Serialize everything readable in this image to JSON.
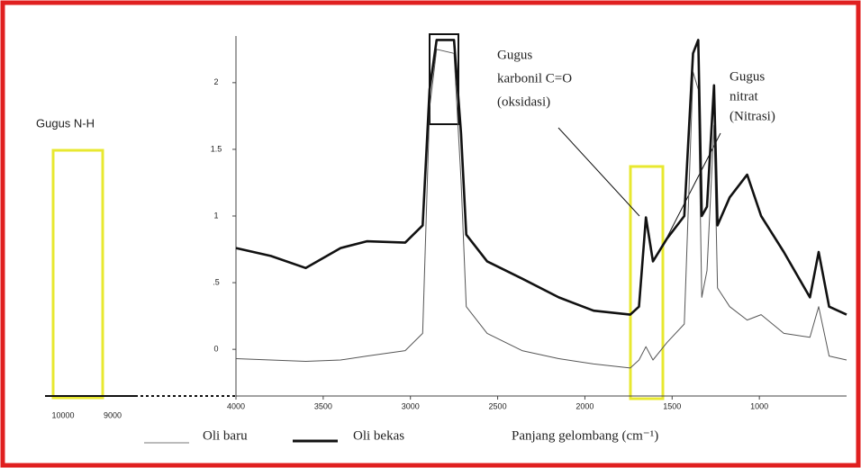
{
  "chart_data": {
    "type": "line",
    "x_axis_label": "Panjang gelombang (cm⁻¹)",
    "x": [
      4000,
      3800,
      3600,
      3400,
      3250,
      3030,
      2930,
      2890,
      2850,
      2750,
      2710,
      2680,
      2560,
      2360,
      2150,
      1950,
      1740,
      1690,
      1650,
      1610,
      1530,
      1430,
      1380,
      1350,
      1330,
      1300,
      1260,
      1240,
      1170,
      1070,
      990,
      860,
      710,
      660,
      600,
      500
    ],
    "series": [
      {
        "name": "Oli baru",
        "color": "#555555",
        "values": [
          -0.07,
          -0.08,
          -0.09,
          -0.08,
          -0.05,
          -0.01,
          0.12,
          1.81,
          2.25,
          2.22,
          1.27,
          0.32,
          0.12,
          -0.01,
          -0.07,
          -0.11,
          -0.14,
          -0.08,
          0.02,
          -0.08,
          0.05,
          0.19,
          2.08,
          1.95,
          0.39,
          0.59,
          1.68,
          0.46,
          0.32,
          0.22,
          0.26,
          0.12,
          0.09,
          0.32,
          -0.05,
          -0.08
        ]
      },
      {
        "name": "Oli bekas",
        "color": "#111111",
        "values": [
          0.76,
          0.7,
          0.61,
          0.76,
          0.81,
          0.8,
          0.93,
          1.95,
          2.32,
          2.32,
          1.62,
          0.86,
          0.66,
          0.53,
          0.39,
          0.29,
          0.26,
          0.32,
          0.99,
          0.66,
          0.83,
          1.0,
          2.22,
          2.32,
          1.0,
          1.07,
          1.98,
          0.93,
          1.14,
          1.31,
          1.0,
          0.73,
          0.39,
          0.73,
          0.32,
          0.26
        ]
      }
    ],
    "xlim": [
      4000,
      500
    ],
    "ylim": [
      -0.35,
      2.35
    ],
    "xticks": [
      4000,
      3500,
      3000,
      2500,
      2000,
      1500,
      1000
    ],
    "yticks": [
      0,
      {
        "value": 0.5,
        "label": ".5"
      },
      1,
      1.5,
      2
    ],
    "extended_axis_labels": [
      "10000",
      "9000"
    ],
    "annotations": {
      "nh": [
        "Gugus N-H"
      ],
      "carbonyl": [
        "Gugus",
        "karbonil C=O",
        "(oksidasi)"
      ],
      "nitrate": [
        "Gugus",
        "nitrat",
        "(Nitrasi)"
      ]
    }
  }
}
